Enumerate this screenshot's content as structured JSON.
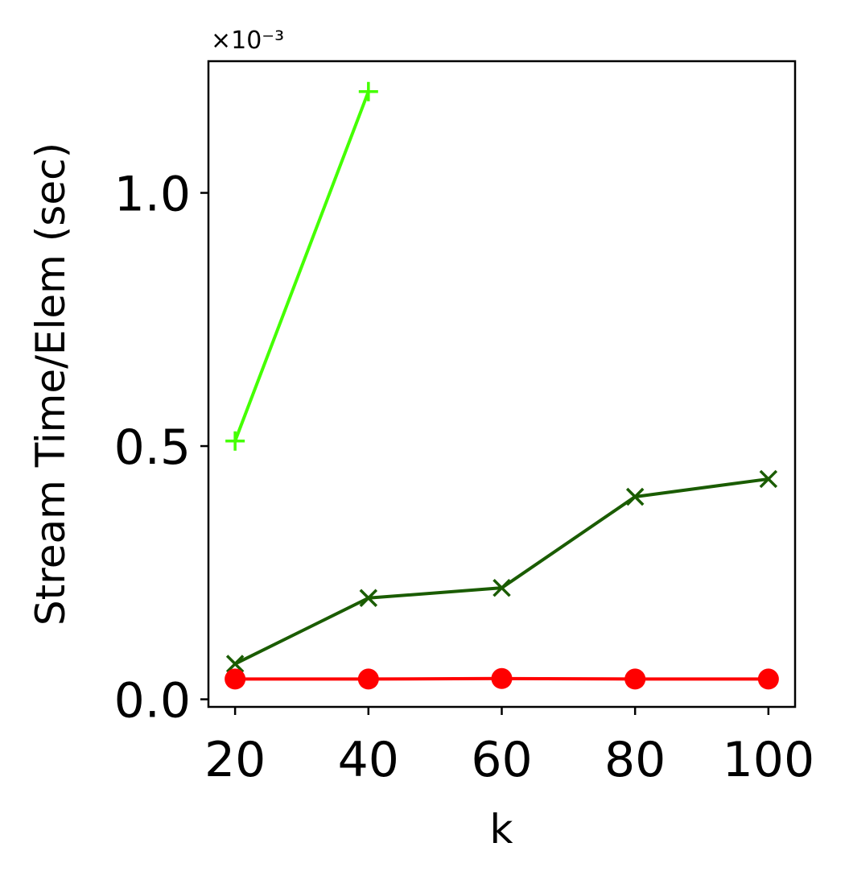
{
  "chart_data": {
    "type": "line",
    "title": "",
    "xlabel": "k",
    "ylabel": "Stream Time/Elem (sec)",
    "y_scale_label": "×10⁻³",
    "y_multiplier": 0.001,
    "xlim": [
      16,
      104
    ],
    "ylim": [
      -0.015,
      1.26
    ],
    "x_ticks": [
      20,
      40,
      60,
      80,
      100
    ],
    "y_ticks": [
      0.0,
      0.5,
      1.0
    ],
    "y_tick_labels": [
      "0.0",
      "0.5",
      "1.0"
    ],
    "grid": false,
    "series": [
      {
        "color": "#44ff00",
        "marker": "plus",
        "x": [
          20,
          40
        ],
        "y": [
          0.51,
          1.2
        ]
      },
      {
        "color": "#1a5c00",
        "marker": "x",
        "x": [
          20,
          40,
          60,
          80,
          100
        ],
        "y": [
          0.07,
          0.2,
          0.22,
          0.4,
          0.435
        ]
      },
      {
        "color": "#ff0000",
        "marker": "circle",
        "x": [
          20,
          40,
          60,
          80,
          100
        ],
        "y": [
          0.04,
          0.04,
          0.041,
          0.04,
          0.04
        ]
      }
    ]
  }
}
